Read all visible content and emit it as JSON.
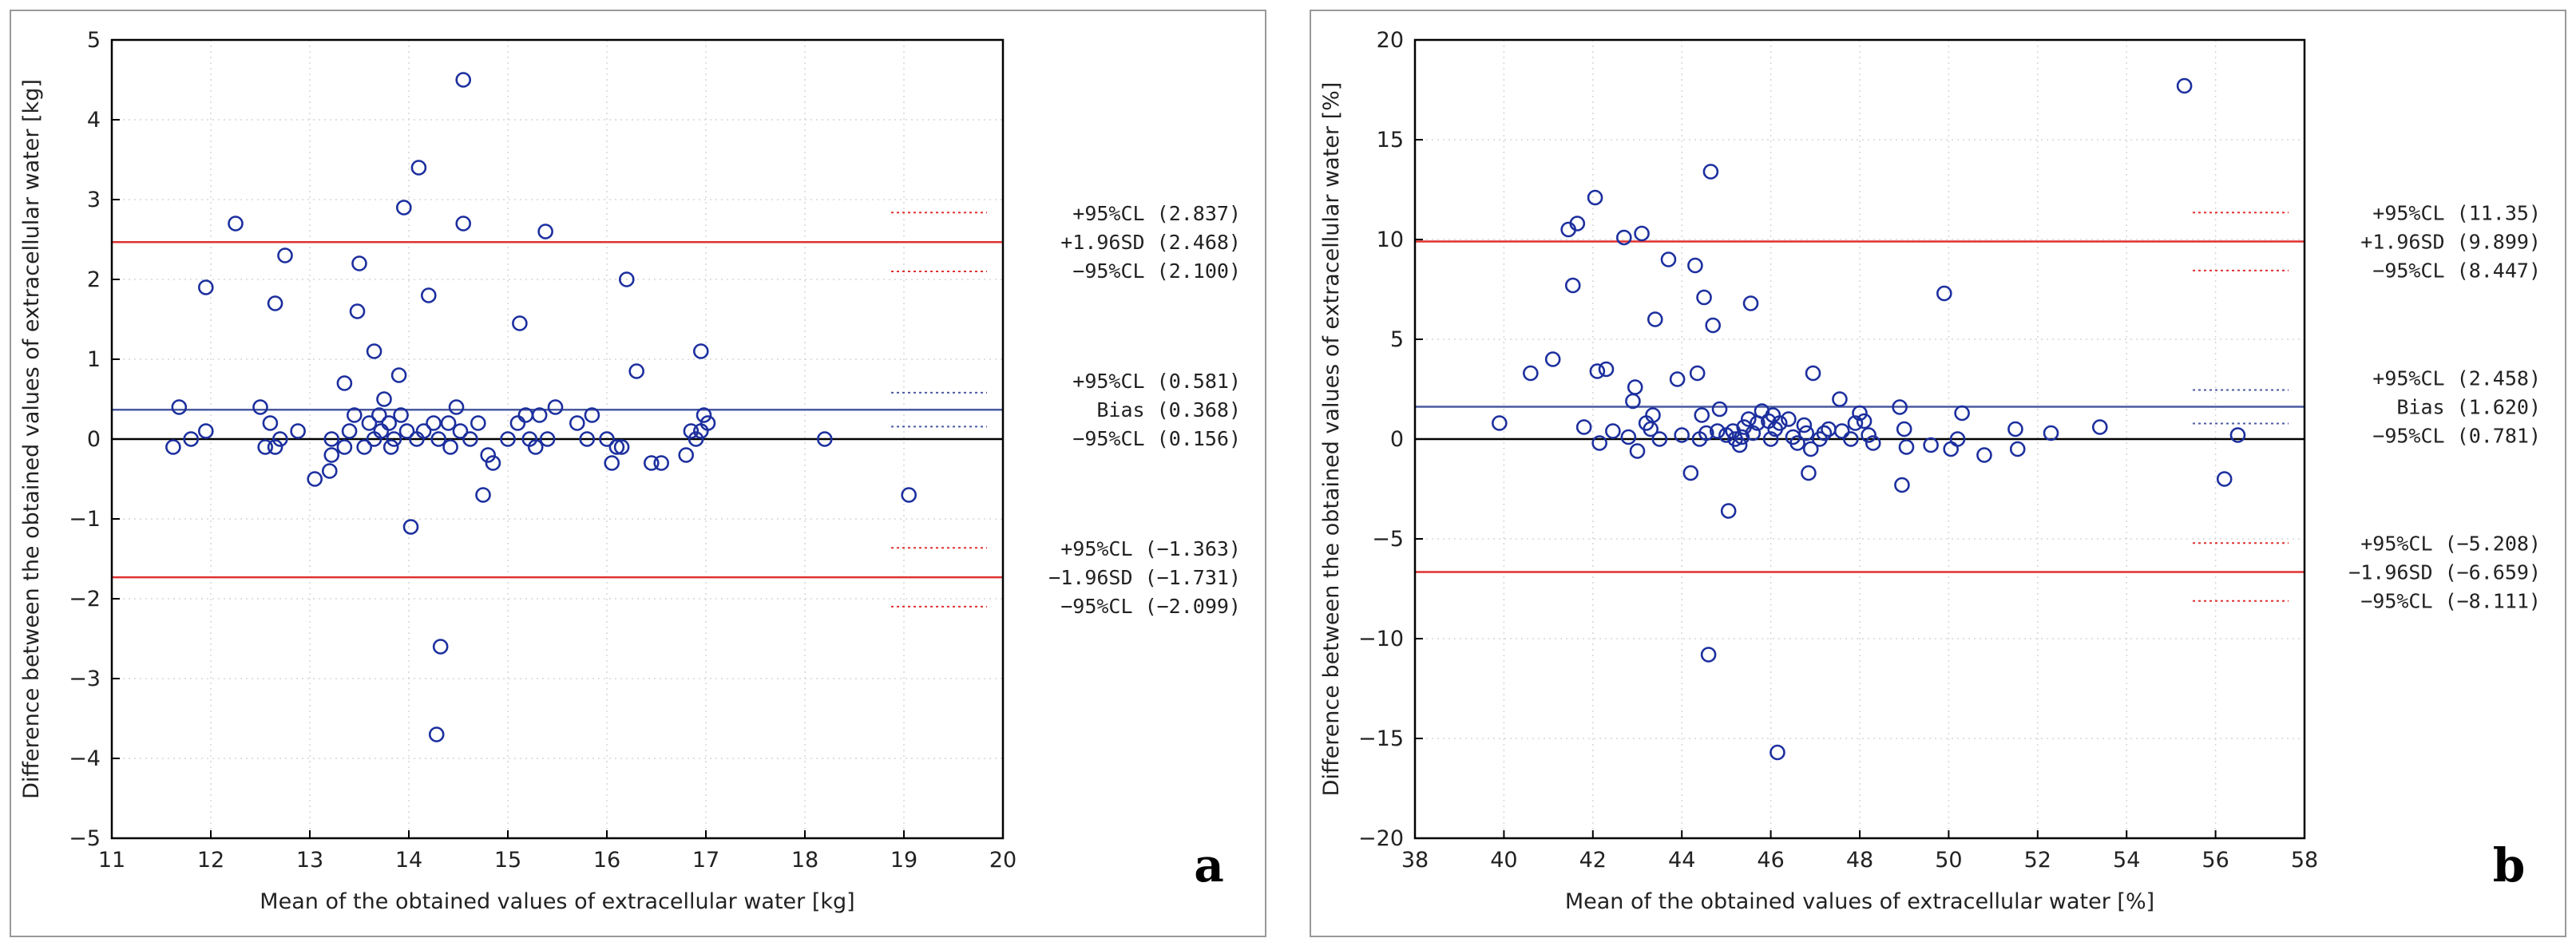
{
  "colors": {
    "point": "#1c2f9e",
    "bias": "#4a5aa0",
    "loa": "#e03030",
    "zero": "#000000",
    "ci_bias": "#4a5aa0",
    "ci_loa": "#e03030"
  },
  "chart_data": [
    {
      "type": "scatter",
      "panel_label": "a",
      "xlabel": "Mean of the obtained values of extracellular water [kg]",
      "ylabel": "Difference between the obtained values of extracellular water [kg]",
      "xlim": [
        11,
        20
      ],
      "ylim": [
        -5,
        5
      ],
      "x_ticks": [
        "11",
        "12",
        "13",
        "14",
        "15",
        "16",
        "17",
        "18",
        "19",
        "20"
      ],
      "y_ticks": [
        "5",
        "4",
        "3",
        "2",
        "1",
        "0",
        "-1",
        "-2",
        "-3",
        "-4",
        "-5"
      ],
      "bias": 0.368,
      "upper_loa": 2.468,
      "lower_loa": -1.731,
      "ci_lines": [
        2.837,
        2.1,
        0.581,
        0.156,
        -1.363,
        -2.099
      ],
      "annotations": [
        "+95%CL (2.837)",
        "+1.96SD (2.468)",
        "−95%CL (2.100)",
        "+95%CL (0.581)",
        "Bias (0.368)",
        "−95%CL (0.156)",
        "+95%CL (−1.363)",
        "−1.96SD (−1.731)",
        "−95%CL (−2.099)"
      ],
      "points": [
        [
          11.62,
          -0.1
        ],
        [
          11.68,
          0.4
        ],
        [
          11.8,
          0.0
        ],
        [
          11.95,
          0.1
        ],
        [
          11.95,
          1.9
        ],
        [
          12.25,
          2.7
        ],
        [
          12.5,
          0.4
        ],
        [
          12.55,
          -0.1
        ],
        [
          12.6,
          0.2
        ],
        [
          12.65,
          -0.1
        ],
        [
          12.7,
          0.0
        ],
        [
          12.65,
          1.7
        ],
        [
          12.75,
          2.3
        ],
        [
          12.88,
          0.1
        ],
        [
          13.05,
          -0.5
        ],
        [
          13.2,
          -0.4
        ],
        [
          13.22,
          -0.2
        ],
        [
          13.22,
          0.0
        ],
        [
          13.35,
          0.7
        ],
        [
          13.35,
          -0.1
        ],
        [
          13.4,
          0.1
        ],
        [
          13.45,
          0.3
        ],
        [
          13.48,
          1.6
        ],
        [
          13.5,
          2.2
        ],
        [
          13.55,
          -0.1
        ],
        [
          13.6,
          0.2
        ],
        [
          13.65,
          1.1
        ],
        [
          13.65,
          0.0
        ],
        [
          13.7,
          0.3
        ],
        [
          13.72,
          0.1
        ],
        [
          13.75,
          0.5
        ],
        [
          13.8,
          0.2
        ],
        [
          13.82,
          -0.1
        ],
        [
          13.85,
          0.0
        ],
        [
          13.9,
          0.8
        ],
        [
          13.92,
          0.3
        ],
        [
          13.98,
          0.1
        ],
        [
          13.95,
          2.9
        ],
        [
          14.02,
          -1.1
        ],
        [
          14.08,
          0.0
        ],
        [
          14.1,
          3.4
        ],
        [
          14.15,
          0.1
        ],
        [
          14.2,
          1.8
        ],
        [
          14.25,
          0.2
        ],
        [
          14.28,
          -3.7
        ],
        [
          14.3,
          0.0
        ],
        [
          14.32,
          -2.6
        ],
        [
          14.4,
          0.2
        ],
        [
          14.42,
          -0.1
        ],
        [
          14.48,
          0.4
        ],
        [
          14.52,
          0.1
        ],
        [
          14.55,
          4.5
        ],
        [
          14.55,
          2.7
        ],
        [
          14.62,
          0.0
        ],
        [
          14.7,
          0.2
        ],
        [
          14.75,
          -0.7
        ],
        [
          14.8,
          -0.2
        ],
        [
          14.85,
          -0.3
        ],
        [
          15.0,
          0.0
        ],
        [
          15.1,
          0.2
        ],
        [
          15.12,
          1.45
        ],
        [
          15.18,
          0.3
        ],
        [
          15.22,
          0.0
        ],
        [
          15.28,
          -0.1
        ],
        [
          15.32,
          0.3
        ],
        [
          15.38,
          2.6
        ],
        [
          15.4,
          0.0
        ],
        [
          15.48,
          0.4
        ],
        [
          15.7,
          0.2
        ],
        [
          15.8,
          0.0
        ],
        [
          15.85,
          0.3
        ],
        [
          16.0,
          0.0
        ],
        [
          16.05,
          -0.3
        ],
        [
          16.1,
          -0.1
        ],
        [
          16.15,
          -0.1
        ],
        [
          16.2,
          2.0
        ],
        [
          16.3,
          0.85
        ],
        [
          16.45,
          -0.3
        ],
        [
          16.55,
          -0.3
        ],
        [
          16.8,
          -0.2
        ],
        [
          16.85,
          0.1
        ],
        [
          16.9,
          0.0
        ],
        [
          16.95,
          1.1
        ],
        [
          16.95,
          0.1
        ],
        [
          16.98,
          0.3
        ],
        [
          17.02,
          0.2
        ],
        [
          18.2,
          0.0
        ],
        [
          19.05,
          -0.7
        ]
      ]
    },
    {
      "type": "scatter",
      "panel_label": "b",
      "xlabel": "Mean of the obtained values of extracellular water [%]",
      "ylabel": "Difference between the obtained values of extracellular water [%]",
      "xlim": [
        38,
        58
      ],
      "ylim": [
        -20,
        20
      ],
      "x_ticks": [
        "38",
        "40",
        "42",
        "44",
        "46",
        "48",
        "50",
        "52",
        "54",
        "56",
        "58"
      ],
      "y_ticks": [
        "20",
        "15",
        "10",
        "5",
        "0",
        "-5",
        "-10",
        "-15",
        "-20"
      ],
      "bias": 1.62,
      "upper_loa": 9.899,
      "lower_loa": -6.659,
      "ci_lines": [
        11.35,
        8.447,
        2.458,
        0.781,
        -5.208,
        -8.111
      ],
      "annotations": [
        "+95%CL (11.35)",
        "+1.96SD (9.899)",
        "−95%CL (8.447)",
        "+95%CL (2.458)",
        "Bias (1.620)",
        "−95%CL (0.781)",
        "+95%CL (−5.208)",
        "−1.96SD (−6.659)",
        "−95%CL (−8.111)"
      ],
      "points": [
        [
          39.9,
          0.8
        ],
        [
          40.6,
          3.3
        ],
        [
          41.1,
          4.0
        ],
        [
          41.45,
          10.5
        ],
        [
          41.55,
          7.7
        ],
        [
          41.65,
          10.8
        ],
        [
          41.8,
          0.6
        ],
        [
          42.05,
          12.1
        ],
        [
          42.1,
          3.4
        ],
        [
          42.15,
          -0.2
        ],
        [
          42.3,
          3.5
        ],
        [
          42.45,
          0.4
        ],
        [
          42.7,
          10.1
        ],
        [
          42.8,
          0.1
        ],
        [
          42.9,
          1.9
        ],
        [
          42.95,
          2.6
        ],
        [
          43.0,
          -0.6
        ],
        [
          43.1,
          10.3
        ],
        [
          43.2,
          0.8
        ],
        [
          43.3,
          0.5
        ],
        [
          43.35,
          1.2
        ],
        [
          43.4,
          6.0
        ],
        [
          43.5,
          0.0
        ],
        [
          43.7,
          9.0
        ],
        [
          43.9,
          3.0
        ],
        [
          44.0,
          0.2
        ],
        [
          44.2,
          -1.7
        ],
        [
          44.3,
          8.7
        ],
        [
          44.35,
          3.3
        ],
        [
          44.4,
          0.0
        ],
        [
          44.45,
          1.2
        ],
        [
          44.5,
          7.1
        ],
        [
          44.55,
          0.3
        ],
        [
          44.6,
          -10.8
        ],
        [
          44.65,
          13.4
        ],
        [
          44.7,
          5.7
        ],
        [
          44.8,
          0.4
        ],
        [
          44.85,
          1.5
        ],
        [
          45.0,
          0.2
        ],
        [
          45.05,
          -3.6
        ],
        [
          45.15,
          0.4
        ],
        [
          45.2,
          0.0
        ],
        [
          45.3,
          -0.3
        ],
        [
          45.35,
          0.1
        ],
        [
          45.4,
          0.6
        ],
        [
          45.5,
          1.0
        ],
        [
          45.55,
          6.8
        ],
        [
          45.6,
          0.3
        ],
        [
          45.7,
          0.8
        ],
        [
          45.8,
          1.4
        ],
        [
          45.95,
          0.9
        ],
        [
          46.0,
          0.0
        ],
        [
          46.05,
          1.2
        ],
        [
          46.1,
          0.5
        ],
        [
          46.15,
          -15.7
        ],
        [
          46.2,
          0.8
        ],
        [
          46.4,
          1.0
        ],
        [
          46.5,
          0.1
        ],
        [
          46.6,
          -0.2
        ],
        [
          46.75,
          0.7
        ],
        [
          46.8,
          0.3
        ],
        [
          46.85,
          -1.7
        ],
        [
          46.9,
          -0.5
        ],
        [
          46.95,
          3.3
        ],
        [
          47.1,
          0.0
        ],
        [
          47.2,
          0.3
        ],
        [
          47.3,
          0.5
        ],
        [
          47.55,
          2.0
        ],
        [
          47.6,
          0.4
        ],
        [
          47.8,
          0.0
        ],
        [
          47.9,
          0.8
        ],
        [
          48.0,
          1.3
        ],
        [
          48.1,
          0.9
        ],
        [
          48.2,
          0.2
        ],
        [
          48.3,
          -0.2
        ],
        [
          48.9,
          1.6
        ],
        [
          48.95,
          -2.3
        ],
        [
          49.0,
          0.5
        ],
        [
          49.05,
          -0.4
        ],
        [
          49.6,
          -0.3
        ],
        [
          49.9,
          7.3
        ],
        [
          50.05,
          -0.5
        ],
        [
          50.2,
          0.0
        ],
        [
          50.3,
          1.3
        ],
        [
          50.8,
          -0.8
        ],
        [
          51.5,
          0.5
        ],
        [
          51.55,
          -0.5
        ],
        [
          52.3,
          0.3
        ],
        [
          53.4,
          0.6
        ],
        [
          55.3,
          17.7
        ],
        [
          56.2,
          -2.0
        ],
        [
          56.5,
          0.2
        ]
      ]
    }
  ]
}
